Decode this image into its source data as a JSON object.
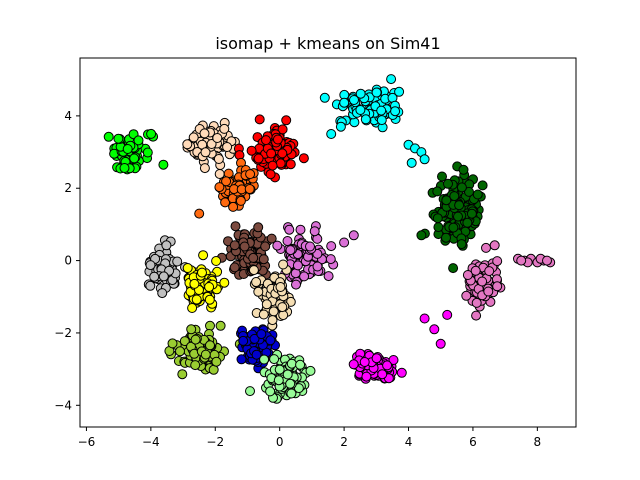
{
  "chart_data": {
    "type": "scatter",
    "title": "isomap + kmeans on Sim41",
    "xlabel": "",
    "ylabel": "",
    "xlim": [
      -6.2,
      9.2
    ],
    "ylim": [
      -4.6,
      5.6
    ],
    "xticks": [
      -6,
      -4,
      -2,
      0,
      2,
      4,
      6,
      8
    ],
    "yticks": [
      -4,
      -2,
      0,
      2,
      4
    ],
    "grid": false,
    "legend": "none",
    "clusters": [
      {
        "color": "#00ff00",
        "center": [
          -4.7,
          3.0
        ],
        "spread": [
          0.55,
          0.45
        ],
        "n": 60
      },
      {
        "color": "#ffdab9",
        "center": [
          -2.2,
          3.2
        ],
        "spread": [
          0.5,
          0.4
        ],
        "n": 90
      },
      {
        "color": "#ff0000",
        "center": [
          -0.2,
          3.0
        ],
        "spread": [
          0.55,
          0.45
        ],
        "n": 110
      },
      {
        "color": "#ff6a10",
        "center": [
          -1.3,
          2.1
        ],
        "spread": [
          0.4,
          0.4
        ],
        "n": 80
      },
      {
        "color": "#00ffff",
        "center": [
          2.9,
          4.2
        ],
        "spread": [
          0.7,
          0.4
        ],
        "n": 90
      },
      {
        "color": "#006400",
        "center": [
          5.5,
          1.3
        ],
        "spread": [
          0.55,
          0.8
        ],
        "n": 160
      },
      {
        "color": "#c0c0c0",
        "center": [
          -3.6,
          -0.2
        ],
        "spread": [
          0.35,
          0.55
        ],
        "n": 70
      },
      {
        "color": "#7b4a3f",
        "center": [
          -1.0,
          0.2
        ],
        "spread": [
          0.5,
          0.5
        ],
        "n": 100
      },
      {
        "color": "#da70d6",
        "center": [
          0.8,
          0.1
        ],
        "spread": [
          0.55,
          0.5
        ],
        "n": 90
      },
      {
        "color": "#ffff00",
        "center": [
          -2.4,
          -0.7
        ],
        "spread": [
          0.45,
          0.55
        ],
        "n": 100
      },
      {
        "color": "#f5deb3",
        "center": [
          -0.2,
          -1.0
        ],
        "spread": [
          0.5,
          0.5
        ],
        "n": 90
      },
      {
        "color": "#e377c2",
        "center": [
          6.3,
          -0.6
        ],
        "spread": [
          0.4,
          0.65
        ],
        "n": 80
      },
      {
        "color": "#9acd32",
        "center": [
          -2.5,
          -2.5
        ],
        "spread": [
          0.55,
          0.4
        ],
        "n": 100
      },
      {
        "color": "#0000cd",
        "center": [
          -0.7,
          -2.3
        ],
        "spread": [
          0.45,
          0.4
        ],
        "n": 90
      },
      {
        "color": "#98fb98",
        "center": [
          0.2,
          -3.2
        ],
        "spread": [
          0.55,
          0.4
        ],
        "n": 100
      },
      {
        "color": "#ff00ff",
        "center": [
          2.9,
          -3.0
        ],
        "spread": [
          0.45,
          0.3
        ],
        "n": 100
      }
    ],
    "extra_points": [
      {
        "color": "#e377c2",
        "x": [
          7.4,
          7.6,
          7.8,
          8.0,
          8.2,
          8.4,
          7.7,
          8.1,
          8.3,
          7.5
        ],
        "y": [
          0.05,
          0.0,
          0.05,
          -0.05,
          0.0,
          -0.05,
          -0.05,
          0.05,
          0.0,
          0.0
        ]
      },
      {
        "color": "#00ffff",
        "x": [
          4.0,
          4.2,
          4.4,
          4.5,
          4.1,
          1.4,
          1.6,
          1.9
        ],
        "y": [
          3.2,
          3.1,
          3.0,
          2.8,
          2.7,
          4.5,
          3.5,
          3.7
        ]
      },
      {
        "color": "#ff00ff",
        "x": [
          4.8,
          5.0,
          4.5,
          5.2
        ],
        "y": [
          -1.9,
          -2.3,
          -1.6,
          -1.5
        ]
      },
      {
        "color": "#da70d6",
        "x": [
          2.3,
          2.0,
          1.6
        ],
        "y": [
          0.7,
          0.5,
          0.4
        ]
      },
      {
        "color": "#ff6a10",
        "x": [
          -2.5
        ],
        "y": [
          1.3
        ]
      },
      {
        "color": "#006400",
        "x": [
          4.4
        ],
        "y": [
          0.7
        ]
      }
    ]
  }
}
